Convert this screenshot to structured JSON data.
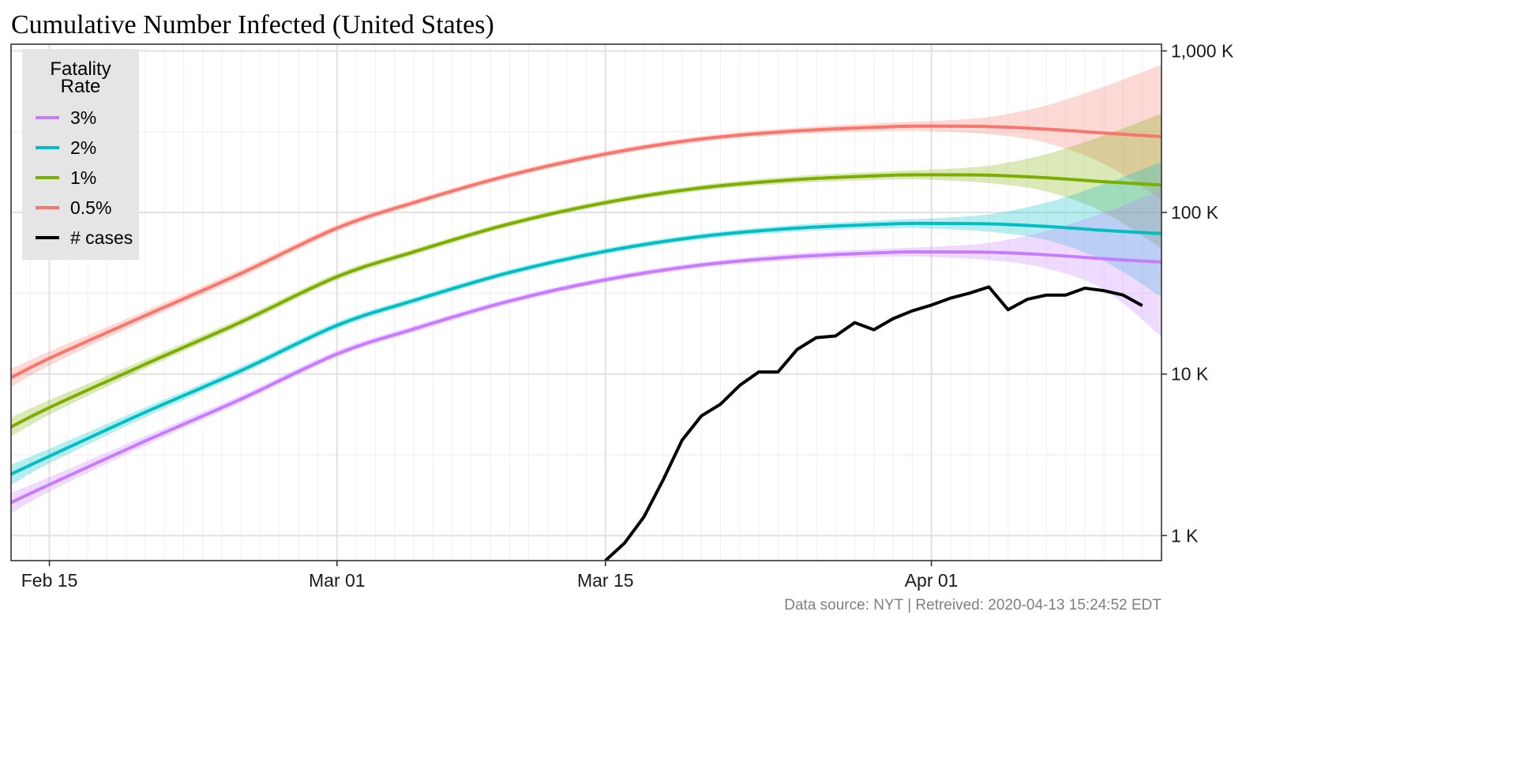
{
  "chart_data": {
    "type": "line",
    "title": "Cumulative Number Infected (United States)",
    "caption": "Data source: NYT  |  Retreived: 2020-04-13 15:24:52 EDT",
    "y_scale": "log10",
    "ylim": [
      700,
      1100000
    ],
    "xlim": [
      "2020-02-13",
      "2020-04-13"
    ],
    "y_ticks": [
      {
        "value": 1000,
        "label": "1 K"
      },
      {
        "value": 10000,
        "label": "10 K"
      },
      {
        "value": 100000,
        "label": "100 K"
      },
      {
        "value": 1000000,
        "label": "1,000 K"
      }
    ],
    "y_minor_ticks": [
      3162,
      31623,
      316228
    ],
    "x_ticks": [
      {
        "date": "2020-02-15",
        "label": "Feb 15"
      },
      {
        "date": "2020-03-01",
        "label": "Mar 01"
      },
      {
        "date": "2020-03-15",
        "label": "Mar 15"
      },
      {
        "date": "2020-04-01",
        "label": "Apr 01"
      }
    ],
    "grid": true,
    "legend": {
      "title_lines": [
        "Fatality",
        "Rate"
      ],
      "position": "top-left",
      "items": [
        {
          "label": "3%",
          "color": "#C77CFF"
        },
        {
          "label": "2%",
          "color": "#00BFC4"
        },
        {
          "label": "1%",
          "color": "#7CAE00"
        },
        {
          "label": "0.5%",
          "color": "#F8766D"
        },
        {
          "label": "# cases",
          "color": "#000000"
        }
      ]
    },
    "series": [
      {
        "name": "0.5%",
        "color": "#F8766D",
        "points": [
          {
            "date": "2020-02-13",
            "y": 9500,
            "lo": 8300,
            "hi": 10800
          },
          {
            "date": "2020-02-15",
            "y": 12500,
            "lo": 11300,
            "hi": 13800
          },
          {
            "date": "2020-02-20",
            "y": 23000,
            "lo": 21500,
            "hi": 24600
          },
          {
            "date": "2020-02-25",
            "y": 42000,
            "lo": 39500,
            "hi": 44500
          },
          {
            "date": "2020-03-01",
            "y": 80000,
            "lo": 76000,
            "hi": 84000
          },
          {
            "date": "2020-03-05",
            "y": 115000,
            "lo": 110000,
            "hi": 120000
          },
          {
            "date": "2020-03-10",
            "y": 170000,
            "lo": 163000,
            "hi": 177000
          },
          {
            "date": "2020-03-15",
            "y": 230000,
            "lo": 221000,
            "hi": 240000
          },
          {
            "date": "2020-03-20",
            "y": 285000,
            "lo": 273000,
            "hi": 297000
          },
          {
            "date": "2020-03-25",
            "y": 320000,
            "lo": 305000,
            "hi": 335000
          },
          {
            "date": "2020-03-30",
            "y": 340000,
            "lo": 320000,
            "hi": 360000
          },
          {
            "date": "2020-04-01",
            "y": 342000,
            "lo": 318000,
            "hi": 368000
          },
          {
            "date": "2020-04-04",
            "y": 340000,
            "lo": 305000,
            "hi": 390000
          },
          {
            "date": "2020-04-07",
            "y": 328000,
            "lo": 270000,
            "hi": 460000
          },
          {
            "date": "2020-04-10",
            "y": 310000,
            "lo": 200000,
            "hi": 600000
          },
          {
            "date": "2020-04-13",
            "y": 295000,
            "lo": 120000,
            "hi": 820000
          }
        ]
      },
      {
        "name": "1%",
        "color": "#7CAE00",
        "points": [
          {
            "date": "2020-02-13",
            "y": 4700,
            "lo": 4100,
            "hi": 5400
          },
          {
            "date": "2020-02-15",
            "y": 6200,
            "lo": 5600,
            "hi": 6900
          },
          {
            "date": "2020-02-20",
            "y": 11500,
            "lo": 10800,
            "hi": 12300
          },
          {
            "date": "2020-02-25",
            "y": 21000,
            "lo": 19900,
            "hi": 22200
          },
          {
            "date": "2020-03-01",
            "y": 40000,
            "lo": 38000,
            "hi": 42000
          },
          {
            "date": "2020-03-05",
            "y": 57000,
            "lo": 54500,
            "hi": 59500
          },
          {
            "date": "2020-03-10",
            "y": 85000,
            "lo": 81500,
            "hi": 88500
          },
          {
            "date": "2020-03-15",
            "y": 115000,
            "lo": 110500,
            "hi": 120000
          },
          {
            "date": "2020-03-20",
            "y": 142000,
            "lo": 136000,
            "hi": 148000
          },
          {
            "date": "2020-03-25",
            "y": 160000,
            "lo": 152000,
            "hi": 168000
          },
          {
            "date": "2020-03-30",
            "y": 170000,
            "lo": 160000,
            "hi": 180000
          },
          {
            "date": "2020-04-01",
            "y": 171000,
            "lo": 159000,
            "hi": 184000
          },
          {
            "date": "2020-04-04",
            "y": 170000,
            "lo": 152000,
            "hi": 195000
          },
          {
            "date": "2020-04-07",
            "y": 164000,
            "lo": 135000,
            "hi": 230000
          },
          {
            "date": "2020-04-10",
            "y": 155000,
            "lo": 100000,
            "hi": 300000
          },
          {
            "date": "2020-04-13",
            "y": 148000,
            "lo": 60000,
            "hi": 410000
          }
        ]
      },
      {
        "name": "2%",
        "color": "#00BFC4",
        "points": [
          {
            "date": "2020-02-13",
            "y": 2400,
            "lo": 2050,
            "hi": 2750
          },
          {
            "date": "2020-02-15",
            "y": 3100,
            "lo": 2800,
            "hi": 3450
          },
          {
            "date": "2020-02-20",
            "y": 5800,
            "lo": 5400,
            "hi": 6200
          },
          {
            "date": "2020-02-25",
            "y": 10500,
            "lo": 9950,
            "hi": 11100
          },
          {
            "date": "2020-03-01",
            "y": 20000,
            "lo": 19000,
            "hi": 21000
          },
          {
            "date": "2020-03-05",
            "y": 28500,
            "lo": 27200,
            "hi": 29800
          },
          {
            "date": "2020-03-10",
            "y": 42500,
            "lo": 40700,
            "hi": 44300
          },
          {
            "date": "2020-03-15",
            "y": 57500,
            "lo": 55200,
            "hi": 60000
          },
          {
            "date": "2020-03-20",
            "y": 71000,
            "lo": 68000,
            "hi": 74000
          },
          {
            "date": "2020-03-25",
            "y": 80000,
            "lo": 76000,
            "hi": 84000
          },
          {
            "date": "2020-03-30",
            "y": 85000,
            "lo": 80000,
            "hi": 90000
          },
          {
            "date": "2020-04-01",
            "y": 85500,
            "lo": 79500,
            "hi": 92000
          },
          {
            "date": "2020-04-04",
            "y": 85000,
            "lo": 76000,
            "hi": 97500
          },
          {
            "date": "2020-04-07",
            "y": 82000,
            "lo": 67500,
            "hi": 115000
          },
          {
            "date": "2020-04-10",
            "y": 77500,
            "lo": 50000,
            "hi": 150000
          },
          {
            "date": "2020-04-13",
            "y": 74000,
            "lo": 30000,
            "hi": 205000
          }
        ]
      },
      {
        "name": "3%",
        "color": "#C77CFF",
        "points": [
          {
            "date": "2020-02-13",
            "y": 1600,
            "lo": 1370,
            "hi": 1840
          },
          {
            "date": "2020-02-15",
            "y": 2070,
            "lo": 1870,
            "hi": 2300
          },
          {
            "date": "2020-02-20",
            "y": 3850,
            "lo": 3600,
            "hi": 4130
          },
          {
            "date": "2020-02-25",
            "y": 7000,
            "lo": 6630,
            "hi": 7400
          },
          {
            "date": "2020-03-01",
            "y": 13300,
            "lo": 12700,
            "hi": 14000
          },
          {
            "date": "2020-03-05",
            "y": 19000,
            "lo": 18100,
            "hi": 19900
          },
          {
            "date": "2020-03-10",
            "y": 28300,
            "lo": 27100,
            "hi": 29500
          },
          {
            "date": "2020-03-15",
            "y": 38300,
            "lo": 36800,
            "hi": 40000
          },
          {
            "date": "2020-03-20",
            "y": 47300,
            "lo": 45300,
            "hi": 49300
          },
          {
            "date": "2020-03-25",
            "y": 53300,
            "lo": 50700,
            "hi": 56000
          },
          {
            "date": "2020-03-30",
            "y": 56700,
            "lo": 53300,
            "hi": 60000
          },
          {
            "date": "2020-04-01",
            "y": 57000,
            "lo": 53000,
            "hi": 61300
          },
          {
            "date": "2020-04-04",
            "y": 56700,
            "lo": 50700,
            "hi": 65000
          },
          {
            "date": "2020-04-07",
            "y": 54700,
            "lo": 45000,
            "hi": 76700
          },
          {
            "date": "2020-04-10",
            "y": 51700,
            "lo": 33300,
            "hi": 100000
          },
          {
            "date": "2020-04-13",
            "y": 49300,
            "lo": 17000,
            "hi": 137000
          }
        ]
      },
      {
        "name": "# cases",
        "color": "#000000",
        "points": [
          {
            "date": "2020-03-15",
            "y": 650
          },
          {
            "date": "2020-03-16",
            "y": 900
          },
          {
            "date": "2020-03-17",
            "y": 1300
          },
          {
            "date": "2020-03-18",
            "y": 2200
          },
          {
            "date": "2020-03-19",
            "y": 3900
          },
          {
            "date": "2020-03-20",
            "y": 5500
          },
          {
            "date": "2020-03-21",
            "y": 6500
          },
          {
            "date": "2020-03-22",
            "y": 8500
          },
          {
            "date": "2020-03-23",
            "y": 10300
          },
          {
            "date": "2020-03-24",
            "y": 10300
          },
          {
            "date": "2020-03-25",
            "y": 14200
          },
          {
            "date": "2020-03-26",
            "y": 16800
          },
          {
            "date": "2020-03-27",
            "y": 17200
          },
          {
            "date": "2020-03-28",
            "y": 20800
          },
          {
            "date": "2020-03-29",
            "y": 18800
          },
          {
            "date": "2020-03-30",
            "y": 22000
          },
          {
            "date": "2020-03-31",
            "y": 24600
          },
          {
            "date": "2020-04-01",
            "y": 26700
          },
          {
            "date": "2020-04-02",
            "y": 29500
          },
          {
            "date": "2020-04-03",
            "y": 31700
          },
          {
            "date": "2020-04-04",
            "y": 34600
          },
          {
            "date": "2020-04-05",
            "y": 25000
          },
          {
            "date": "2020-04-06",
            "y": 29000
          },
          {
            "date": "2020-04-07",
            "y": 30800
          },
          {
            "date": "2020-04-08",
            "y": 30800
          },
          {
            "date": "2020-04-09",
            "y": 34000
          },
          {
            "date": "2020-04-10",
            "y": 32800
          },
          {
            "date": "2020-04-11",
            "y": 30800
          },
          {
            "date": "2020-04-12",
            "y": 26500
          }
        ]
      }
    ]
  }
}
